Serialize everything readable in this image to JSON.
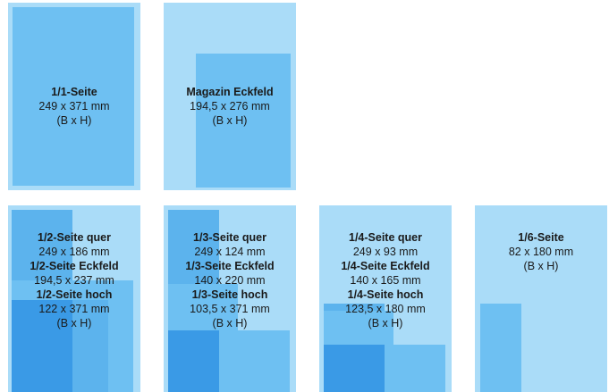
{
  "cards": {
    "full": {
      "title": "1/1-Seite",
      "size": "249 x 371 mm",
      "unit": "(B x H)"
    },
    "corner": {
      "title": "Magazin Eckfeld",
      "size": "194,5 x 276 mm",
      "unit": "(B x H)"
    },
    "half": {
      "t1": "1/2-Seite quer",
      "s1": "249 x 186 mm",
      "t2": "1/2-Seite Eckfeld",
      "s2": "194,5 x 237 mm",
      "t3": "1/2-Seite hoch",
      "s3": "122 x 371 mm",
      "unit": "(B x H)"
    },
    "third": {
      "t1": "1/3-Seite quer",
      "s1": "249 x 124 mm",
      "t2": "1/3-Seite Eckfeld",
      "s2": "140 x 220 mm",
      "t3": "1/3-Seite hoch",
      "s3": "103,5 x 371 mm",
      "unit": "(B x H)"
    },
    "quarter": {
      "t1": "1/4-Seite quer",
      "s1": "249 x 93 mm",
      "t2": "1/4-Seite Eckfeld",
      "s2": "140 x 165 mm",
      "t3": "1/4-Seite hoch",
      "s3": "123,5 x 180 mm",
      "unit": "(B x H)"
    },
    "sixth": {
      "title": "1/6-Seite",
      "size": "82 x 180 mm",
      "unit": "(B x H)"
    }
  },
  "colors": {
    "page": "#aadcf8",
    "block": "#6ec0f2",
    "dark": "#3a9ae6"
  }
}
